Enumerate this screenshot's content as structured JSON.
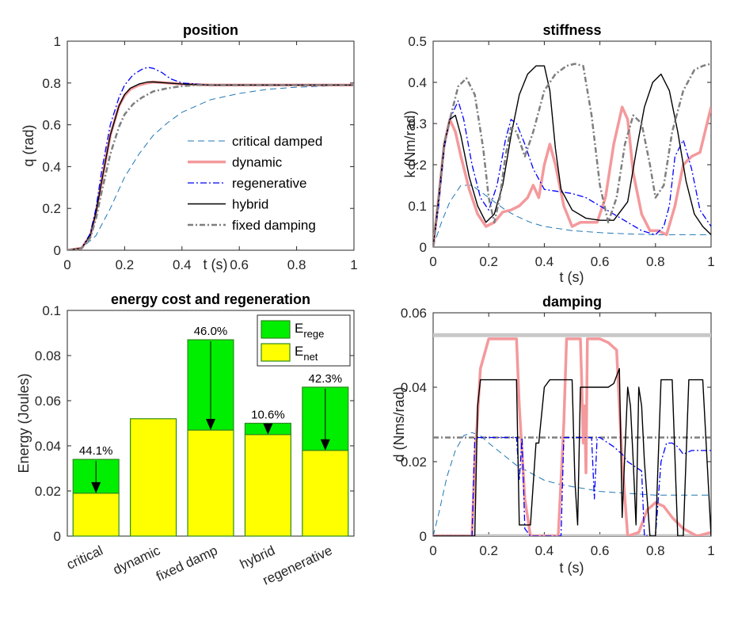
{
  "colors": {
    "critical": "#1f77b4",
    "dynamic": "#f4999c",
    "regenerative": "#0000ff",
    "hybrid": "#000000",
    "fixed": "#7f7f7f",
    "rege_fill": "#00ee00",
    "net_fill": "#ffff00",
    "bar_edge": "#2d8a1e",
    "limit": "#c8c8c8"
  },
  "chart_data": [
    {
      "id": "position",
      "type": "line",
      "title": "position",
      "xlabel": "t (s)",
      "ylabel": "q (rad)",
      "xlim": [
        0,
        1
      ],
      "ylim": [
        0,
        1
      ],
      "xticks": [
        0,
        0.2,
        0.4,
        0.6,
        0.8,
        1
      ],
      "xtick_labels": [
        "0",
        "0.2",
        "0.4",
        "0.6",
        "0.8",
        "1"
      ],
      "yticks": [
        0,
        0.2,
        0.4,
        0.6,
        0.8,
        1
      ],
      "ytick_labels": [
        "0",
        "0.2",
        "0.4",
        "0.6",
        "0.8",
        "1"
      ],
      "legend_position": "bottom-right",
      "series": [
        {
          "name": "critical damped",
          "style": "critical",
          "x": [
            0,
            0.05,
            0.1,
            0.15,
            0.2,
            0.25,
            0.3,
            0.35,
            0.4,
            0.45,
            0.5,
            0.6,
            0.7,
            0.8,
            0.9,
            1.0
          ],
          "y": [
            0,
            0.01,
            0.07,
            0.2,
            0.35,
            0.46,
            0.55,
            0.61,
            0.66,
            0.69,
            0.72,
            0.75,
            0.77,
            0.78,
            0.785,
            0.79
          ]
        },
        {
          "name": "dynamic",
          "style": "dynamic",
          "x": [
            0,
            0.05,
            0.08,
            0.1,
            0.12,
            0.15,
            0.18,
            0.2,
            0.22,
            0.25,
            0.28,
            0.3,
            0.35,
            0.4,
            0.5,
            0.6,
            0.8,
            1.0
          ],
          "y": [
            0,
            0.01,
            0.07,
            0.18,
            0.33,
            0.55,
            0.69,
            0.74,
            0.77,
            0.79,
            0.8,
            0.805,
            0.8,
            0.795,
            0.79,
            0.79,
            0.79,
            0.79
          ]
        },
        {
          "name": "regenerative",
          "style": "regenerative",
          "x": [
            0,
            0.05,
            0.08,
            0.1,
            0.12,
            0.15,
            0.18,
            0.2,
            0.23,
            0.26,
            0.28,
            0.3,
            0.33,
            0.36,
            0.4,
            0.45,
            0.5,
            0.6,
            0.8,
            1.0
          ],
          "y": [
            0,
            0.01,
            0.08,
            0.2,
            0.38,
            0.6,
            0.73,
            0.79,
            0.84,
            0.865,
            0.875,
            0.87,
            0.85,
            0.82,
            0.8,
            0.795,
            0.79,
            0.79,
            0.79,
            0.79
          ]
        },
        {
          "name": "hybrid",
          "style": "hybrid",
          "x": [
            0,
            0.05,
            0.08,
            0.1,
            0.12,
            0.15,
            0.18,
            0.2,
            0.22,
            0.25,
            0.28,
            0.3,
            0.35,
            0.4,
            0.5,
            0.6,
            0.8,
            1.0
          ],
          "y": [
            0,
            0.01,
            0.07,
            0.18,
            0.33,
            0.55,
            0.69,
            0.745,
            0.775,
            0.795,
            0.805,
            0.805,
            0.8,
            0.795,
            0.79,
            0.79,
            0.79,
            0.79
          ]
        },
        {
          "name": "fixed damping",
          "style": "fixed",
          "x": [
            0,
            0.05,
            0.08,
            0.1,
            0.12,
            0.15,
            0.18,
            0.2,
            0.23,
            0.26,
            0.3,
            0.35,
            0.4,
            0.45,
            0.5,
            0.6,
            0.8,
            1.0
          ],
          "y": [
            0,
            0.01,
            0.06,
            0.15,
            0.28,
            0.46,
            0.59,
            0.65,
            0.7,
            0.73,
            0.76,
            0.775,
            0.785,
            0.79,
            0.79,
            0.79,
            0.79,
            0.79
          ]
        }
      ]
    },
    {
      "id": "stiffness",
      "type": "line",
      "title": "stiffness",
      "xlabel": "t (s)",
      "ylabel": "k (Nm/rad)",
      "xlim": [
        0,
        1
      ],
      "ylim": [
        0,
        0.5
      ],
      "xticks": [
        0,
        0.2,
        0.4,
        0.6,
        0.8,
        1
      ],
      "xtick_labels": [
        "0",
        "0.2",
        "0.4",
        "0.6",
        "0.8",
        "1"
      ],
      "yticks": [
        0,
        0.1,
        0.2,
        0.3,
        0.4,
        0.5
      ],
      "ytick_labels": [
        "0",
        "0.1",
        "0.2",
        "0.3",
        "0.4",
        "0.5"
      ],
      "series": [
        {
          "style": "critical",
          "x": [
            0,
            0.03,
            0.06,
            0.1,
            0.14,
            0.18,
            0.22,
            0.26,
            0.3,
            0.35,
            0.4,
            0.5,
            0.6,
            0.7,
            0.8,
            0.9,
            1.0
          ],
          "y": [
            0,
            0.06,
            0.11,
            0.15,
            0.15,
            0.13,
            0.11,
            0.09,
            0.075,
            0.06,
            0.05,
            0.04,
            0.035,
            0.032,
            0.03,
            0.03,
            0.03
          ]
        },
        {
          "style": "dynamic",
          "x": [
            0,
            0.02,
            0.04,
            0.06,
            0.08,
            0.1,
            0.13,
            0.16,
            0.19,
            0.22,
            0.25,
            0.28,
            0.31,
            0.34,
            0.36,
            0.38,
            0.4,
            0.42,
            0.44,
            0.47,
            0.5,
            0.53,
            0.56,
            0.59,
            0.62,
            0.65,
            0.68,
            0.7,
            0.72,
            0.75,
            0.78,
            0.81,
            0.84,
            0.87,
            0.9,
            0.93,
            0.96,
            1.0
          ],
          "y": [
            0,
            0.12,
            0.25,
            0.31,
            0.28,
            0.22,
            0.14,
            0.08,
            0.05,
            0.06,
            0.085,
            0.09,
            0.1,
            0.12,
            0.15,
            0.12,
            0.2,
            0.25,
            0.2,
            0.1,
            0.05,
            0.06,
            0.06,
            0.06,
            0.12,
            0.25,
            0.34,
            0.31,
            0.18,
            0.08,
            0.04,
            0.04,
            0.03,
            0.1,
            0.2,
            0.22,
            0.23,
            0.34
          ]
        },
        {
          "style": "regenerative",
          "x": [
            0,
            0.02,
            0.04,
            0.06,
            0.09,
            0.11,
            0.14,
            0.17,
            0.2,
            0.23,
            0.26,
            0.28,
            0.3,
            0.33,
            0.36,
            0.4,
            0.45,
            0.5,
            0.55,
            0.6,
            0.65,
            0.7,
            0.75,
            0.8,
            0.83,
            0.85,
            0.87,
            0.9,
            0.93,
            0.96,
            1.0
          ],
          "y": [
            0,
            0.1,
            0.24,
            0.31,
            0.355,
            0.31,
            0.2,
            0.12,
            0.09,
            0.15,
            0.26,
            0.31,
            0.3,
            0.25,
            0.19,
            0.14,
            0.135,
            0.13,
            0.12,
            0.1,
            0.08,
            0.06,
            0.04,
            0.03,
            0.05,
            0.1,
            0.22,
            0.26,
            0.19,
            0.09,
            0.05
          ]
        },
        {
          "style": "hybrid",
          "x": [
            0,
            0.02,
            0.04,
            0.06,
            0.08,
            0.1,
            0.13,
            0.16,
            0.19,
            0.22,
            0.25,
            0.28,
            0.31,
            0.34,
            0.37,
            0.4,
            0.42,
            0.44,
            0.46,
            0.5,
            0.55,
            0.6,
            0.65,
            0.7,
            0.73,
            0.76,
            0.79,
            0.82,
            0.85,
            0.88,
            0.91,
            0.94,
            0.97,
            1.0
          ],
          "y": [
            0,
            0.12,
            0.25,
            0.31,
            0.32,
            0.27,
            0.17,
            0.1,
            0.06,
            0.08,
            0.15,
            0.27,
            0.37,
            0.42,
            0.44,
            0.44,
            0.38,
            0.24,
            0.14,
            0.09,
            0.07,
            0.065,
            0.065,
            0.11,
            0.23,
            0.34,
            0.4,
            0.42,
            0.38,
            0.28,
            0.16,
            0.08,
            0.05,
            0.03
          ]
        },
        {
          "style": "fixed",
          "x": [
            0,
            0.02,
            0.04,
            0.06,
            0.09,
            0.12,
            0.15,
            0.18,
            0.2,
            0.22,
            0.24,
            0.26,
            0.28,
            0.3,
            0.33,
            0.36,
            0.4,
            0.44,
            0.48,
            0.51,
            0.54,
            0.57,
            0.6,
            0.63,
            0.66,
            0.69,
            0.72,
            0.75,
            0.78,
            0.8,
            0.83,
            0.86,
            0.9,
            0.94,
            0.97,
            1.0
          ],
          "y": [
            0,
            0.12,
            0.25,
            0.31,
            0.39,
            0.41,
            0.37,
            0.24,
            0.12,
            0.06,
            0.12,
            0.22,
            0.29,
            0.28,
            0.22,
            0.28,
            0.38,
            0.42,
            0.44,
            0.445,
            0.44,
            0.32,
            0.15,
            0.06,
            0.12,
            0.25,
            0.32,
            0.3,
            0.2,
            0.12,
            0.15,
            0.28,
            0.38,
            0.43,
            0.44,
            0.445
          ]
        }
      ]
    },
    {
      "id": "energy",
      "type": "bar",
      "title": "energy cost and regeneration",
      "xlabel": "",
      "ylabel": "Energy (Joules)",
      "ylim": [
        0,
        0.1
      ],
      "yticks": [
        0,
        0.02,
        0.04,
        0.06,
        0.08,
        0.1
      ],
      "ytick_labels": [
        "0",
        "0.02",
        "0.04",
        "0.06",
        "0.08",
        "0.1"
      ],
      "categories": [
        "critical",
        "dynamic",
        "fixed damp",
        "hybrid",
        "regenerative"
      ],
      "series": [
        {
          "name": "E_net",
          "values": [
            0.019,
            0.052,
            0.047,
            0.045,
            0.038
          ]
        },
        {
          "name": "E_rege",
          "values": [
            0.015,
            0.0,
            0.04,
            0.005,
            0.028
          ]
        }
      ],
      "annotations": [
        "44.1%",
        "",
        "46.0%",
        "10.6%",
        "42.3%"
      ],
      "legend": [
        {
          "key": "rege",
          "base": "E",
          "sub": "rege"
        },
        {
          "key": "net",
          "base": "E",
          "sub": "net"
        }
      ],
      "legend_position": "top-right"
    },
    {
      "id": "damping",
      "type": "line",
      "title": "damping",
      "xlabel": "t (s)",
      "ylabel": "d (Nms/rad)",
      "xlim": [
        0,
        1
      ],
      "ylim": [
        0,
        0.06
      ],
      "xticks": [
        0,
        0.2,
        0.4,
        0.6,
        0.8,
        1
      ],
      "xtick_labels": [
        "0",
        "0.2",
        "0.4",
        "0.6",
        "0.8",
        "1"
      ],
      "yticks": [
        0,
        0.02,
        0.04,
        0.06
      ],
      "ytick_labels": [
        "0",
        "0.02",
        "0.04",
        "0.06"
      ],
      "reference_lines": [
        {
          "style": "limit",
          "y": 0.054
        },
        {
          "style": "limit",
          "y": 0.0
        },
        {
          "style": "fixed",
          "y": 0.0265
        }
      ],
      "series": [
        {
          "style": "critical",
          "x": [
            0,
            0.02,
            0.05,
            0.08,
            0.11,
            0.14,
            0.17,
            0.2,
            0.25,
            0.3,
            0.35,
            0.4,
            0.45,
            0.5,
            0.55,
            0.6,
            0.7,
            0.8,
            0.9,
            1.0
          ],
          "y": [
            0,
            0.006,
            0.016,
            0.023,
            0.027,
            0.0278,
            0.027,
            0.025,
            0.022,
            0.019,
            0.017,
            0.015,
            0.014,
            0.0133,
            0.0127,
            0.012,
            0.0115,
            0.011,
            0.011,
            0.011
          ]
        },
        {
          "style": "dynamic",
          "x": [
            0,
            0.14,
            0.15,
            0.17,
            0.2,
            0.22,
            0.3,
            0.31,
            0.33,
            0.35,
            0.45,
            0.47,
            0.48,
            0.5,
            0.53,
            0.535,
            0.54,
            0.545,
            0.55,
            0.555,
            0.56,
            0.6,
            0.63,
            0.66,
            0.68,
            0.7,
            0.74,
            0.77,
            0.8,
            0.83,
            0.86,
            0.9,
            0.95,
            1.0
          ],
          "y": [
            0,
            0,
            0.02,
            0.045,
            0.053,
            0.053,
            0.053,
            0.035,
            0.01,
            0,
            0,
            0.03,
            0.053,
            0.053,
            0.053,
            0.04,
            0.025,
            0.035,
            0.017,
            0.053,
            0.053,
            0.053,
            0.052,
            0.05,
            0.02,
            0,
            0.001,
            0.007,
            0.009,
            0.008,
            0.005,
            0.002,
            0,
            0.001
          ]
        },
        {
          "style": "regenerative",
          "x": [
            0,
            0.14,
            0.15,
            0.3,
            0.31,
            0.32,
            0.33,
            0.35,
            0.46,
            0.47,
            0.48,
            0.57,
            0.58,
            0.59,
            0.6,
            0.65,
            0.68,
            0.7,
            0.75,
            0.76,
            0.77,
            0.8,
            0.82,
            0.84,
            0.86,
            0.88,
            0.9,
            0.93,
            0.96,
            1.0
          ],
          "y": [
            0,
            0,
            0.0265,
            0.0265,
            0.015,
            0.0265,
            0.002,
            0,
            0,
            0.0265,
            0.0265,
            0.0265,
            0.01,
            0.0265,
            0.0265,
            0.024,
            0.022,
            0.02,
            0.0175,
            0.0,
            0.0,
            0.0,
            0.02,
            0.025,
            0.025,
            0.024,
            0.022,
            0.023,
            0.023,
            0.023
          ]
        },
        {
          "style": "hybrid",
          "x": [
            0,
            0.15,
            0.16,
            0.17,
            0.3,
            0.31,
            0.35,
            0.37,
            0.38,
            0.4,
            0.42,
            0.5,
            0.51,
            0.52,
            0.53,
            0.58,
            0.6,
            0.63,
            0.65,
            0.67,
            0.68,
            0.7,
            0.71,
            0.72,
            0.73,
            0.74,
            0.75,
            0.76,
            0.78,
            0.8,
            0.82,
            0.86,
            0.88,
            0.9,
            0.92,
            0.97,
            1.0
          ],
          "y": [
            0,
            0,
            0.035,
            0.042,
            0.042,
            0.003,
            0.003,
            0.025,
            0.025,
            0.04,
            0.042,
            0.042,
            0.015,
            0.003,
            0.04,
            0.04,
            0.04,
            0.04,
            0.041,
            0.045,
            0.005,
            0.04,
            0.035,
            0.02,
            0.003,
            0.04,
            0.035,
            0.02,
            0.0,
            0.0,
            0.042,
            0.042,
            0.0,
            0.0,
            0.042,
            0.042,
            0.0
          ]
        }
      ]
    }
  ]
}
